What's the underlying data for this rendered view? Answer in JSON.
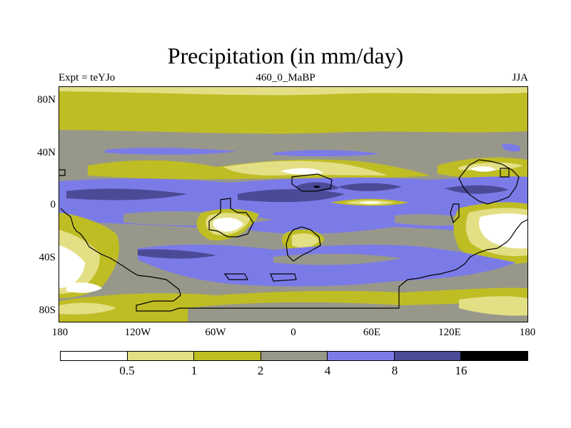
{
  "title": "Precipitation (in mm/day)",
  "subtitle_left": "Expt = teYJo",
  "subtitle_center": "460_0_MaBP",
  "subtitle_right": "JJA",
  "map": {
    "lat_labels": [
      "80N",
      "40N",
      "0",
      "40S",
      "80S"
    ],
    "lon_labels": [
      "180",
      "120W",
      "60W",
      "0",
      "60E",
      "120E",
      "180"
    ]
  },
  "colorbar": {
    "labels": [
      "0.5",
      "1",
      "2",
      "4",
      "8",
      "16"
    ],
    "colors": [
      "#ffffff",
      "#e3df85",
      "#bfbd24",
      "#98988a",
      "#7b7be8",
      "#4a4a96",
      "#000000"
    ]
  }
}
